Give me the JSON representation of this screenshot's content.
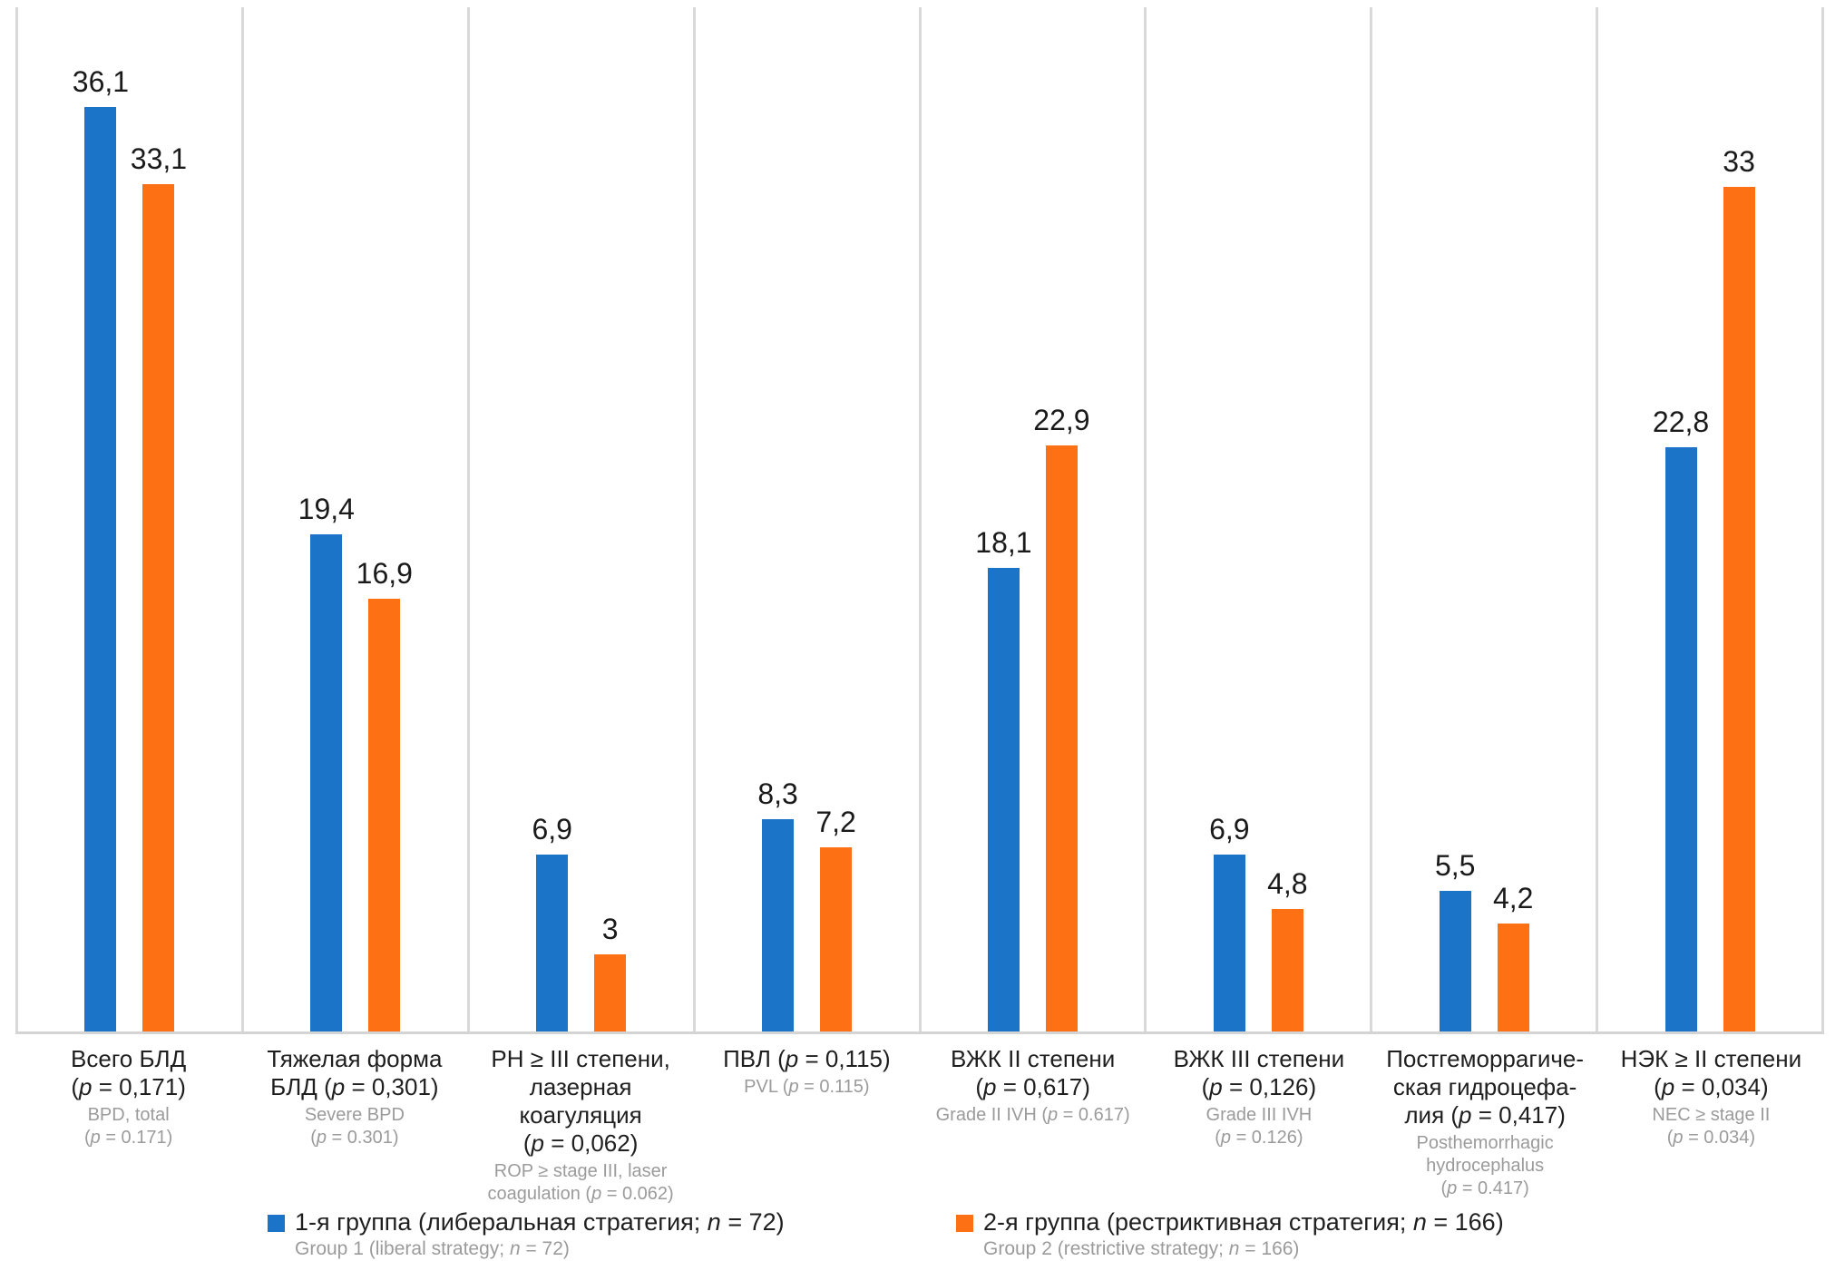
{
  "chart_data": {
    "type": "bar",
    "title": "",
    "xlabel": "",
    "ylabel": "",
    "ylim": [
      0,
      40
    ],
    "grid": "vertical panel separators only, no horizontal gridlines, no y-axis ticks",
    "legend_position": "bottom",
    "decimal_style": {
      "russian": "comma",
      "english": "dot"
    },
    "categories": [
      {
        "label_ru": "Всего БЛД\n(p = 0,171)",
        "label_en": "BPD, total\n(p = 0.171)"
      },
      {
        "label_ru": "Тяжелая форма\nБЛД (p = 0,301)",
        "label_en": "Severe BPD\n(p = 0.301)"
      },
      {
        "label_ru": "РН ≥ III степени,\nлазерная\nкоагуляция\n(p = 0,062)",
        "label_en": "ROP ≥ stage III, laser\ncoagulation (p = 0.062)"
      },
      {
        "label_ru": "ПВЛ (p = 0,115)",
        "label_en": "PVL (p = 0.115)"
      },
      {
        "label_ru": "ВЖК II степени\n(p = 0,617)",
        "label_en": "Grade II IVH (p = 0.617)"
      },
      {
        "label_ru": "ВЖК III степени\n(p = 0,126)",
        "label_en": "Grade III IVH\n(p = 0.126)"
      },
      {
        "label_ru": "Постгеморрагиче-\nская гидроцефа-\nлия (p = 0,417)",
        "label_en": "Posthemorrhagic\nhydrocephalus\n(p = 0.417)"
      },
      {
        "label_ru": "НЭК ≥ II степени\n(p = 0,034)",
        "label_en": "NEC ≥ stage II\n(p = 0.034)"
      }
    ],
    "series": [
      {
        "name_ru": "1-я группа (либеральная стратегия; n = 72)",
        "name_en": "Group 1 (liberal strategy; n = 72)",
        "color": "#1b74c8",
        "values": [
          36.1,
          19.4,
          6.9,
          8.3,
          18.1,
          6.9,
          5.5,
          22.8
        ],
        "value_labels": [
          "36,1",
          "19,4",
          "6,9",
          "8,3",
          "18,1",
          "6,9",
          "5,5",
          "22,8"
        ]
      },
      {
        "name_ru": "2-я группа (рестриктивная стратегия; n = 166)",
        "name_en": "Group 2 (restrictive strategy; n = 166)",
        "color": "#fd7013",
        "values": [
          33.1,
          16.9,
          3,
          7.2,
          22.9,
          4.8,
          4.2,
          33
        ],
        "value_labels": [
          "33,1",
          "16,9",
          "3",
          "7,2",
          "22,9",
          "4,8",
          "4,2",
          "33"
        ]
      }
    ]
  },
  "colors": {
    "series_1": "#1b74c8",
    "series_2": "#fd7013",
    "gridline": "#d9d9d9",
    "axis_line": "#d4d4d4",
    "text_primary": "#1f1f1f",
    "text_secondary": "#9b9b9b",
    "background": "#ffffff"
  }
}
